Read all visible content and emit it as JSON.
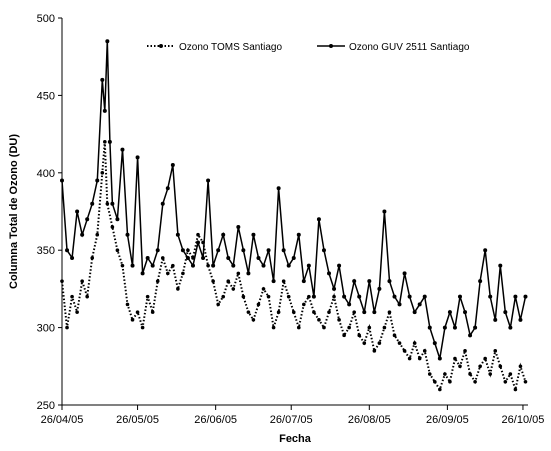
{
  "chart_data": {
    "type": "line",
    "title": "",
    "xlabel": "Fecha",
    "ylabel": "Columna Total de Ozono (DU)",
    "ylim": [
      250,
      500
    ],
    "yticks": [
      250,
      300,
      350,
      400,
      450,
      500
    ],
    "xlim": [
      "2005-04-26",
      "2005-10-28"
    ],
    "xticks": [
      "26/04/05",
      "26/05/05",
      "26/06/05",
      "26/07/05",
      "26/08/05",
      "26/09/05",
      "26/10/05"
    ],
    "xtick_dates": [
      "2005-04-26",
      "2005-05-26",
      "2005-06-26",
      "2005-07-26",
      "2005-08-26",
      "2005-09-26",
      "2005-10-26"
    ],
    "grid": false,
    "legend_position": "top",
    "series": [
      {
        "name": "Ozono TOMS Santiago",
        "color": "#000000",
        "style": "dotted",
        "points": [
          [
            "2005-04-26",
            330
          ],
          [
            "2005-04-28",
            300
          ],
          [
            "2005-04-30",
            320
          ],
          [
            "2005-05-02",
            310
          ],
          [
            "2005-05-04",
            330
          ],
          [
            "2005-05-06",
            320
          ],
          [
            "2005-05-08",
            345
          ],
          [
            "2005-05-10",
            360
          ],
          [
            "2005-05-12",
            400
          ],
          [
            "2005-05-13",
            420
          ],
          [
            "2005-05-14",
            380
          ],
          [
            "2005-05-16",
            365
          ],
          [
            "2005-05-18",
            350
          ],
          [
            "2005-05-20",
            340
          ],
          [
            "2005-05-22",
            315
          ],
          [
            "2005-05-24",
            305
          ],
          [
            "2005-05-26",
            310
          ],
          [
            "2005-05-28",
            300
          ],
          [
            "2005-05-30",
            320
          ],
          [
            "2005-06-01",
            310
          ],
          [
            "2005-06-03",
            330
          ],
          [
            "2005-06-05",
            345
          ],
          [
            "2005-06-07",
            335
          ],
          [
            "2005-06-09",
            340
          ],
          [
            "2005-06-11",
            325
          ],
          [
            "2005-06-13",
            335
          ],
          [
            "2005-06-15",
            350
          ],
          [
            "2005-06-17",
            345
          ],
          [
            "2005-06-19",
            360
          ],
          [
            "2005-06-21",
            355
          ],
          [
            "2005-06-23",
            340
          ],
          [
            "2005-06-25",
            330
          ],
          [
            "2005-06-27",
            315
          ],
          [
            "2005-06-29",
            320
          ],
          [
            "2005-07-01",
            330
          ],
          [
            "2005-07-03",
            325
          ],
          [
            "2005-07-05",
            335
          ],
          [
            "2005-07-07",
            320
          ],
          [
            "2005-07-09",
            310
          ],
          [
            "2005-07-11",
            305
          ],
          [
            "2005-07-13",
            315
          ],
          [
            "2005-07-15",
            325
          ],
          [
            "2005-07-17",
            320
          ],
          [
            "2005-07-19",
            300
          ],
          [
            "2005-07-21",
            310
          ],
          [
            "2005-07-23",
            330
          ],
          [
            "2005-07-25",
            320
          ],
          [
            "2005-07-27",
            310
          ],
          [
            "2005-07-29",
            300
          ],
          [
            "2005-07-31",
            315
          ],
          [
            "2005-08-02",
            320
          ],
          [
            "2005-08-04",
            310
          ],
          [
            "2005-08-06",
            305
          ],
          [
            "2005-08-08",
            300
          ],
          [
            "2005-08-10",
            310
          ],
          [
            "2005-08-12",
            320
          ],
          [
            "2005-08-14",
            305
          ],
          [
            "2005-08-16",
            295
          ],
          [
            "2005-08-18",
            300
          ],
          [
            "2005-08-20",
            310
          ],
          [
            "2005-08-22",
            295
          ],
          [
            "2005-08-24",
            290
          ],
          [
            "2005-08-26",
            300
          ],
          [
            "2005-08-28",
            285
          ],
          [
            "2005-08-30",
            290
          ],
          [
            "2005-09-01",
            300
          ],
          [
            "2005-09-03",
            310
          ],
          [
            "2005-09-05",
            295
          ],
          [
            "2005-09-07",
            290
          ],
          [
            "2005-09-09",
            285
          ],
          [
            "2005-09-11",
            280
          ],
          [
            "2005-09-13",
            290
          ],
          [
            "2005-09-15",
            280
          ],
          [
            "2005-09-17",
            285
          ],
          [
            "2005-09-19",
            270
          ],
          [
            "2005-09-21",
            265
          ],
          [
            "2005-09-23",
            260
          ],
          [
            "2005-09-25",
            270
          ],
          [
            "2005-09-27",
            265
          ],
          [
            "2005-09-29",
            280
          ],
          [
            "2005-10-01",
            275
          ],
          [
            "2005-10-03",
            285
          ],
          [
            "2005-10-05",
            270
          ],
          [
            "2005-10-07",
            265
          ],
          [
            "2005-10-09",
            275
          ],
          [
            "2005-10-11",
            280
          ],
          [
            "2005-10-13",
            270
          ],
          [
            "2005-10-15",
            285
          ],
          [
            "2005-10-17",
            275
          ],
          [
            "2005-10-19",
            265
          ],
          [
            "2005-10-21",
            270
          ],
          [
            "2005-10-23",
            260
          ],
          [
            "2005-10-25",
            275
          ],
          [
            "2005-10-27",
            265
          ]
        ]
      },
      {
        "name": "Ozono GUV 2511 Santiago",
        "color": "#000000",
        "style": "solid",
        "points": [
          [
            "2005-04-26",
            395
          ],
          [
            "2005-04-28",
            350
          ],
          [
            "2005-04-30",
            345
          ],
          [
            "2005-05-02",
            375
          ],
          [
            "2005-05-04",
            360
          ],
          [
            "2005-05-06",
            370
          ],
          [
            "2005-05-08",
            380
          ],
          [
            "2005-05-10",
            395
          ],
          [
            "2005-05-12",
            460
          ],
          [
            "2005-05-13",
            440
          ],
          [
            "2005-05-14",
            485
          ],
          [
            "2005-05-15",
            420
          ],
          [
            "2005-05-16",
            380
          ],
          [
            "2005-05-18",
            370
          ],
          [
            "2005-05-20",
            415
          ],
          [
            "2005-05-22",
            360
          ],
          [
            "2005-05-24",
            340
          ],
          [
            "2005-05-26",
            410
          ],
          [
            "2005-05-28",
            335
          ],
          [
            "2005-05-30",
            345
          ],
          [
            "2005-06-01",
            340
          ],
          [
            "2005-06-03",
            350
          ],
          [
            "2005-06-05",
            380
          ],
          [
            "2005-06-07",
            390
          ],
          [
            "2005-06-09",
            405
          ],
          [
            "2005-06-11",
            360
          ],
          [
            "2005-06-13",
            350
          ],
          [
            "2005-06-15",
            345
          ],
          [
            "2005-06-17",
            340
          ],
          [
            "2005-06-19",
            355
          ],
          [
            "2005-06-21",
            345
          ],
          [
            "2005-06-23",
            395
          ],
          [
            "2005-06-25",
            340
          ],
          [
            "2005-06-27",
            350
          ],
          [
            "2005-06-29",
            360
          ],
          [
            "2005-07-01",
            345
          ],
          [
            "2005-07-03",
            340
          ],
          [
            "2005-07-05",
            365
          ],
          [
            "2005-07-07",
            350
          ],
          [
            "2005-07-09",
            335
          ],
          [
            "2005-07-11",
            360
          ],
          [
            "2005-07-13",
            345
          ],
          [
            "2005-07-15",
            340
          ],
          [
            "2005-07-17",
            350
          ],
          [
            "2005-07-19",
            330
          ],
          [
            "2005-07-21",
            390
          ],
          [
            "2005-07-23",
            350
          ],
          [
            "2005-07-25",
            340
          ],
          [
            "2005-07-27",
            345
          ],
          [
            "2005-07-29",
            360
          ],
          [
            "2005-07-31",
            330
          ],
          [
            "2005-08-02",
            340
          ],
          [
            "2005-08-04",
            320
          ],
          [
            "2005-08-06",
            370
          ],
          [
            "2005-08-08",
            350
          ],
          [
            "2005-08-10",
            335
          ],
          [
            "2005-08-12",
            325
          ],
          [
            "2005-08-14",
            340
          ],
          [
            "2005-08-16",
            320
          ],
          [
            "2005-08-18",
            315
          ],
          [
            "2005-08-20",
            330
          ],
          [
            "2005-08-22",
            320
          ],
          [
            "2005-08-24",
            310
          ],
          [
            "2005-08-26",
            330
          ],
          [
            "2005-08-28",
            310
          ],
          [
            "2005-08-30",
            325
          ],
          [
            "2005-09-01",
            375
          ],
          [
            "2005-09-03",
            330
          ],
          [
            "2005-09-05",
            320
          ],
          [
            "2005-09-07",
            315
          ],
          [
            "2005-09-09",
            335
          ],
          [
            "2005-09-11",
            320
          ],
          [
            "2005-09-13",
            310
          ],
          [
            "2005-09-15",
            315
          ],
          [
            "2005-09-17",
            320
          ],
          [
            "2005-09-19",
            300
          ],
          [
            "2005-09-21",
            290
          ],
          [
            "2005-09-23",
            280
          ],
          [
            "2005-09-25",
            300
          ],
          [
            "2005-09-27",
            310
          ],
          [
            "2005-09-29",
            300
          ],
          [
            "2005-10-01",
            320
          ],
          [
            "2005-10-03",
            310
          ],
          [
            "2005-10-05",
            295
          ],
          [
            "2005-10-07",
            300
          ],
          [
            "2005-10-09",
            330
          ],
          [
            "2005-10-11",
            350
          ],
          [
            "2005-10-13",
            320
          ],
          [
            "2005-10-15",
            305
          ],
          [
            "2005-10-17",
            340
          ],
          [
            "2005-10-19",
            310
          ],
          [
            "2005-10-21",
            300
          ],
          [
            "2005-10-23",
            320
          ],
          [
            "2005-10-25",
            305
          ],
          [
            "2005-10-27",
            320
          ]
        ]
      }
    ]
  }
}
